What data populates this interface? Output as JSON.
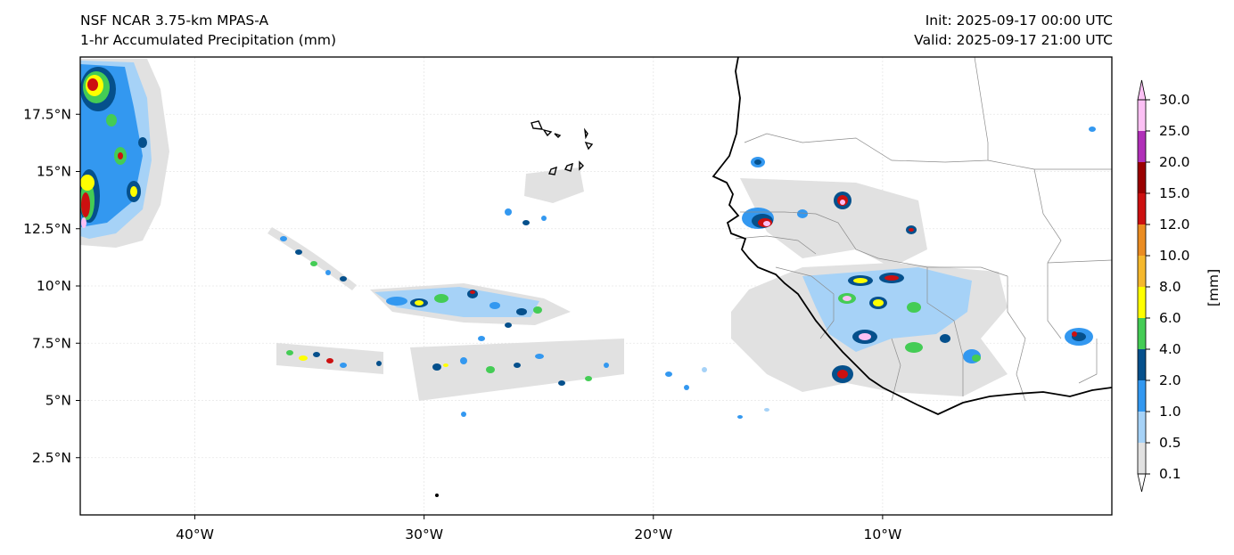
{
  "header": {
    "model": "NSF NCAR 3.75-km MPAS-A",
    "field": "1-hr Accumulated Precipitation (mm)",
    "init": "Init: 2025-09-17 00:00 UTC",
    "valid": "Valid: 2025-09-17 21:00 UTC"
  },
  "map": {
    "lon_range": [
      -45,
      0
    ],
    "lat_range": [
      0,
      20
    ],
    "lon_ticks": [
      "40°W",
      "30°W",
      "20°W",
      "10°W"
    ],
    "lat_ticks": [
      "17.5°N",
      "15°N",
      "12.5°N",
      "10°N",
      "7.5°N",
      "5°N",
      "2.5°N"
    ],
    "gridlines": true
  },
  "colorbar": {
    "label": "[mm]",
    "levels": [
      "0.1",
      "0.5",
      "1.0",
      "2.0",
      "4.0",
      "6.0",
      "8.0",
      "10.0",
      "12.0",
      "15.0",
      "20.0",
      "25.0",
      "30.0"
    ],
    "colors": [
      "#e1e1e1",
      "#a6d2f7",
      "#3398f0",
      "#05508c",
      "#44cc55",
      "#ffff00",
      "#f5b82d",
      "#ea8c22",
      "#cc1010",
      "#990000",
      "#b02fb8",
      "#fbc0f4"
    ],
    "extend": "both"
  }
}
